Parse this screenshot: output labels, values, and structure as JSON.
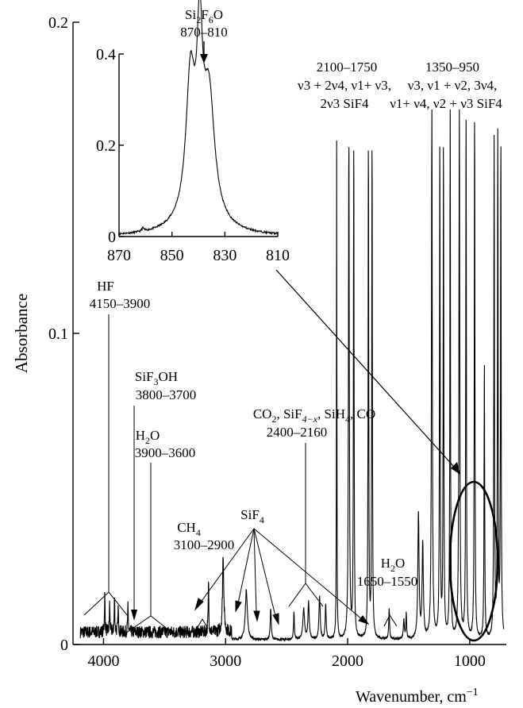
{
  "chart_data": [
    {
      "type": "line",
      "name": "main-spectrum",
      "xlabel": "Wavenumber, cm",
      "xlabel_sup": "−1",
      "ylabel": "Absorbance",
      "xlim": [
        4250,
        700
      ],
      "ylim": [
        0,
        0.2
      ],
      "x_ticks": [
        4000,
        3000,
        2000,
        1000
      ],
      "x_tick_labels": [
        "4000",
        "3000",
        "2000",
        "1000"
      ],
      "y_ticks": [
        0,
        0.1,
        0.2
      ],
      "y_tick_labels": [
        "0",
        "0.1",
        "0.2"
      ],
      "grid": false,
      "noise_baseline": {
        "x_range": [
          4200,
          2950
        ],
        "level": 0.004,
        "amplitude": 0.002
      },
      "peaks": [
        {
          "x": 3990,
          "h": 0.012,
          "w": 3
        },
        {
          "x": 3950,
          "h": 0.009,
          "w": 3
        },
        {
          "x": 3910,
          "h": 0.011,
          "w": 3
        },
        {
          "x": 3880,
          "h": 0.008,
          "w": 3
        },
        {
          "x": 3800,
          "h": 0.008,
          "w": 3
        },
        {
          "x": 3140,
          "h": 0.017,
          "w": 3
        },
        {
          "x": 3020,
          "h": 0.025,
          "w": 6
        },
        {
          "x": 2830,
          "h": 0.016,
          "w": 10
        },
        {
          "x": 2630,
          "h": 0.01,
          "w": 5
        },
        {
          "x": 2440,
          "h": 0.009,
          "w": 4
        },
        {
          "x": 2360,
          "h": 0.01,
          "w": 8
        },
        {
          "x": 2320,
          "h": 0.012,
          "w": 6
        },
        {
          "x": 2230,
          "h": 0.014,
          "w": 6
        },
        {
          "x": 2180,
          "h": 0.011,
          "w": 5
        },
        {
          "x": 2090,
          "h": 0.16,
          "w": 2
        },
        {
          "x": 1990,
          "h": 0.16,
          "w": 4
        },
        {
          "x": 1950,
          "h": 0.16,
          "w": 3
        },
        {
          "x": 1830,
          "h": 0.16,
          "w": 3
        },
        {
          "x": 1800,
          "h": 0.16,
          "w": 3
        },
        {
          "x": 1660,
          "h": 0.01,
          "w": 4
        },
        {
          "x": 1540,
          "h": 0.006,
          "w": 5
        },
        {
          "x": 1520,
          "h": 0.008,
          "w": 4
        },
        {
          "x": 1420,
          "h": 0.04,
          "w": 6
        },
        {
          "x": 1385,
          "h": 0.03,
          "w": 6
        },
        {
          "x": 1310,
          "h": 0.17,
          "w": 4
        },
        {
          "x": 1245,
          "h": 0.16,
          "w": 3
        },
        {
          "x": 1215,
          "h": 0.16,
          "w": 3
        },
        {
          "x": 1160,
          "h": 0.17,
          "w": 3
        },
        {
          "x": 1085,
          "h": 0.17,
          "w": 4
        },
        {
          "x": 1030,
          "h": 0.17,
          "w": 3
        },
        {
          "x": 960,
          "h": 0.17,
          "w": 3
        },
        {
          "x": 880,
          "h": 0.09,
          "w": 3
        },
        {
          "x": 800,
          "h": 0.16,
          "w": 3
        },
        {
          "x": 770,
          "h": 0.16,
          "w": 3
        },
        {
          "x": 745,
          "h": 0.16,
          "w": 3
        }
      ]
    },
    {
      "type": "line",
      "name": "inset-si2f6o-band",
      "xlim": [
        870,
        810
      ],
      "ylim": [
        0,
        0.4
      ],
      "x_ticks": [
        870,
        850,
        830,
        810
      ],
      "x_tick_labels": [
        "870",
        "850",
        "830",
        "810"
      ],
      "y_ticks": [
        0,
        0.2,
        0.4
      ],
      "y_tick_labels": [
        "0",
        "0.2",
        "0.4"
      ],
      "peaks": [
        {
          "x": 843,
          "h": 0.29,
          "w": 2.0
        },
        {
          "x": 839.5,
          "h": 0.33,
          "w": 1.3
        },
        {
          "x": 836,
          "h": 0.26,
          "w": 2.5
        },
        {
          "x": 840,
          "h": 0.05,
          "w": 7.0
        },
        {
          "x": 861,
          "h": 0.007,
          "w": 0.5
        }
      ]
    }
  ],
  "annotations": {
    "hf": {
      "line1": "HF",
      "line2": "4150–3900"
    },
    "sif3oh": {
      "line1_main": "SiF",
      "line1_sub": "3",
      "line1_tail": "OH",
      "line2": "3800–3700"
    },
    "h2o_high": {
      "line1_main": "H",
      "line1_sub": "2",
      "line1_tail": "O",
      "line2": "3900–3600"
    },
    "ch4": {
      "line1_main": "CH",
      "line1_sub": "4",
      "line2": "3100–2900"
    },
    "sif4": {
      "main": "SiF",
      "sub": "4"
    },
    "co2_group": {
      "line1_a": "CO",
      "line1_a_sub": "2",
      "line1_b": ", SiF",
      "line1_b_sub": "4−x",
      "line1_c": ", SiH",
      "line1_c_sub": "4",
      "line1_d": ", CO",
      "line2": "2400–2160"
    },
    "h2o_low": {
      "line1_main": "H",
      "line1_sub": "2",
      "line1_tail": "O",
      "line2": "1650–1550"
    },
    "range_2100": {
      "line1": "2100–1750",
      "line2": "ν3 + 2ν4, ν1+ ν3,",
      "line3": "2ν3 SiF4"
    },
    "range_1350": {
      "line1": "1350–950",
      "line2": "ν3, ν1 + ν2, 3ν4,",
      "line3": "ν1+ ν4, ν2 + ν3 SiF4"
    },
    "inset_title": {
      "line1_a": "Si",
      "line1_a_sub": "2",
      "line1_b": "F",
      "line1_b_sub": "6",
      "line1_c": "O",
      "line2": "870–810"
    }
  }
}
